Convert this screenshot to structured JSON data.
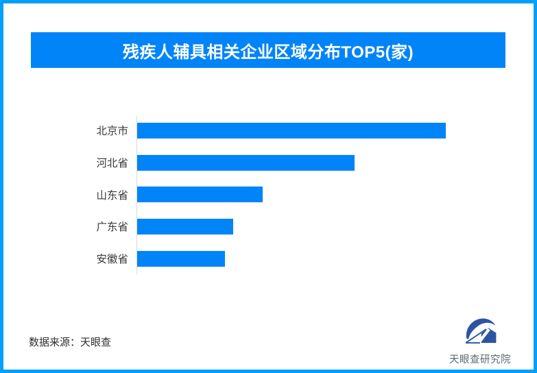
{
  "page": {
    "background": "#ffffff",
    "border_color": "#00a0f8"
  },
  "header": {
    "title": "残疾人辅具相关企业区域分布TOP5(家)",
    "banner_color": "#0084f8",
    "title_color": "#ffffff"
  },
  "chart_data": {
    "type": "bar",
    "orientation": "horizontal",
    "title": "残疾人辅具相关企业区域分布TOP5(家)",
    "categories": [
      "北京市",
      "河北省",
      "山东省",
      "广东省",
      "安徽省"
    ],
    "values": [
      450,
      317,
      183,
      140,
      128
    ],
    "value_labels_shown": false,
    "note": "no numeric axis, ticks or data labels are visible; values are relative bar lengths measured in screen pixels",
    "xlabel": "",
    "ylabel": "",
    "grid": false,
    "legend": "none",
    "bar_color": "#0084f8",
    "axis_line_color": "#d9d9d9",
    "label_color": "#3a3a3a"
  },
  "footer": {
    "source": "数据来源：天眼查",
    "logo_text": "天眼查研究院",
    "logo_color": "#2b55a2",
    "logo_text_color": "#5c6a75"
  }
}
